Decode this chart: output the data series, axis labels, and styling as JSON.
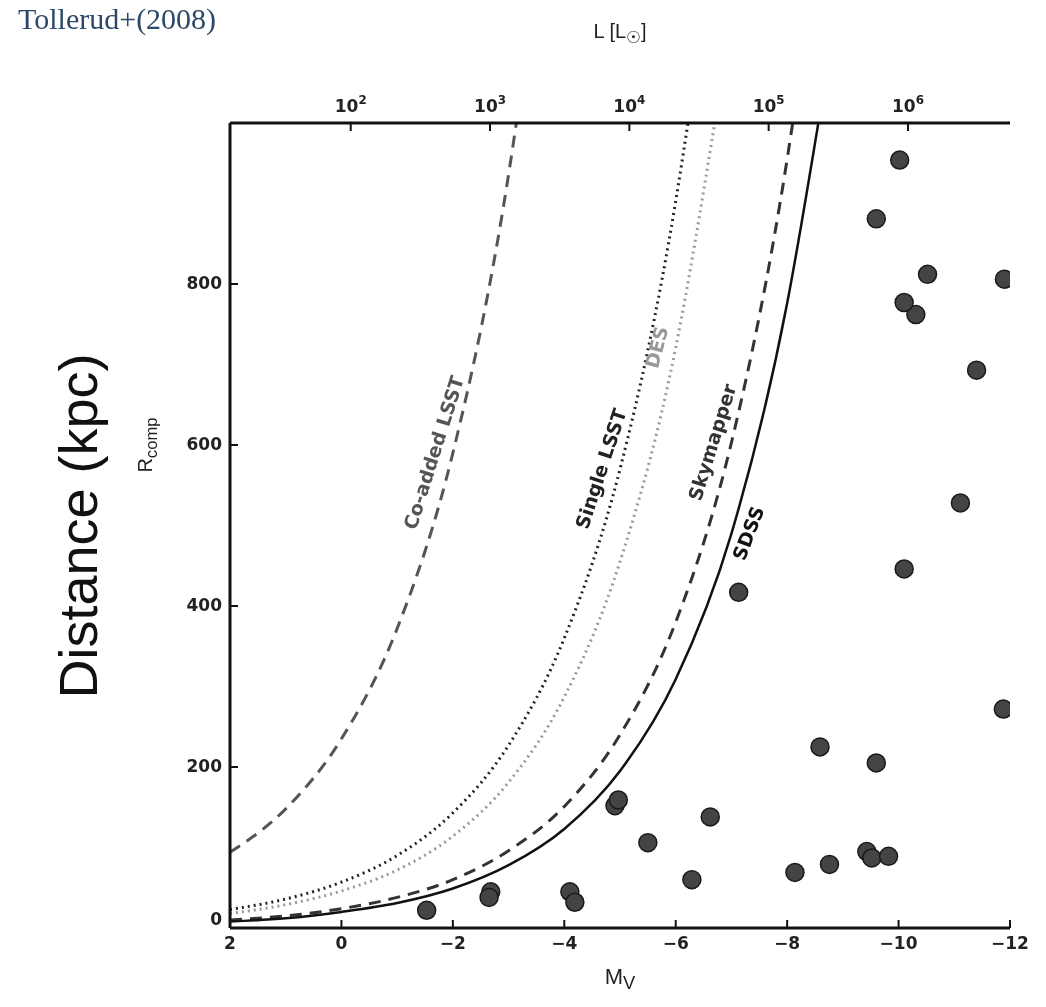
{
  "chart_data": {
    "type": "line",
    "title": "Tollerud+(2008)",
    "xlabel": "M$_{V}$",
    "ylabel": "Distance (kpc)",
    "x2label": "L [L$_{☉}$]",
    "annotations": [
      "R$_{comp}$"
    ],
    "xlim": [
      2,
      -12
    ],
    "xticks": [
      2,
      0,
      {
        "value": -2,
        "label": "−2"
      },
      {
        "value": -4,
        "label": "−4"
      },
      {
        "value": -6,
        "label": "−6"
      },
      {
        "value": -8,
        "label": "−8"
      },
      {
        "value": -10,
        "label": "−10"
      },
      {
        "value": -12,
        "label": "−12"
      }
    ],
    "ylim": [
      0,
      1000
    ],
    "yticks": [
      0,
      200,
      400,
      600,
      800
    ],
    "x2lim": [
      13.6,
      5400000
    ],
    "x2ticks": [
      {
        "value": 100,
        "label": "10$^{2}$"
      },
      {
        "value": 1000,
        "label": "10$^{3}$"
      },
      {
        "value": 10000,
        "label": "10$^{4}$"
      },
      {
        "value": 100000,
        "label": "10$^{5}$"
      },
      {
        "value": 1000000,
        "label": "10$^{6}$"
      }
    ],
    "log": "x2",
    "grid": false,
    "legend": false,
    "series": [
      {
        "name": "Co-added LSST",
        "color": "#555555",
        "line_style": "dashed",
        "x": [
          2,
          1,
          0,
          -1,
          -2,
          -3,
          -3.14
        ],
        "values": [
          94,
          148,
          235,
          372,
          590,
          936,
          1000
        ]
      },
      {
        "name": "Single LSST",
        "color": "#222222",
        "line_style": "dotted",
        "x": [
          2,
          1,
          0,
          -1,
          -2,
          -3,
          -4,
          -5,
          -6,
          -6.22
        ],
        "values": [
          23,
          36,
          57,
          90,
          143,
          227,
          360,
          570,
          903,
          1000
        ]
      },
      {
        "name": "DES",
        "color": "#999999",
        "line_style": "dotted",
        "x": [
          2,
          1,
          0,
          -1,
          -2,
          -3,
          -4,
          -5,
          -6,
          -6.7
        ],
        "values": [
          18,
          29,
          46,
          72,
          114,
          181,
          287,
          455,
          721,
          1000
        ]
      },
      {
        "name": "Skymapper",
        "color": "#333333",
        "line_style": "dashed",
        "x": [
          2,
          1,
          0,
          -1,
          -2,
          -3,
          -4,
          -5,
          -6,
          -7,
          -8,
          -8.1
        ],
        "values": [
          10,
          15,
          24,
          38,
          60,
          96,
          151,
          240,
          380,
          603,
          955,
          1000
        ]
      },
      {
        "name": "SDSS",
        "color": "#111111",
        "line_style": "solid",
        "x": [
          2,
          1,
          0,
          -1,
          -2,
          -3,
          -4,
          -5,
          -6,
          -7,
          -8,
          -8.56
        ],
        "values": [
          8,
          12,
          20,
          31,
          49,
          78,
          123,
          195,
          309,
          490,
          776,
          1000
        ]
      },
      {
        "type": "scatter",
        "color": "#444444",
        "marker": "circle",
        "x": [
          -1.53,
          -2.68,
          -2.65,
          -4.1,
          -4.19,
          -4.91,
          -4.97,
          -5.5,
          -6.29,
          -6.62,
          -7.13,
          -8.14,
          -8.59,
          -8.76,
          -9.43,
          -9.52,
          -9.6,
          -9.82,
          -10.1,
          -11.88,
          -11.11,
          -11.4,
          -10.31,
          -10.1,
          -11.9,
          -10.52,
          -9.6,
          -10.02
        ],
        "values": [
          22,
          45,
          38,
          45,
          32,
          152,
          159,
          106,
          60,
          138,
          417,
          69,
          225,
          79,
          95,
          87,
          205,
          89,
          446,
          272,
          528,
          693,
          762,
          777,
          806,
          812,
          881,
          954
        ]
      }
    ]
  }
}
